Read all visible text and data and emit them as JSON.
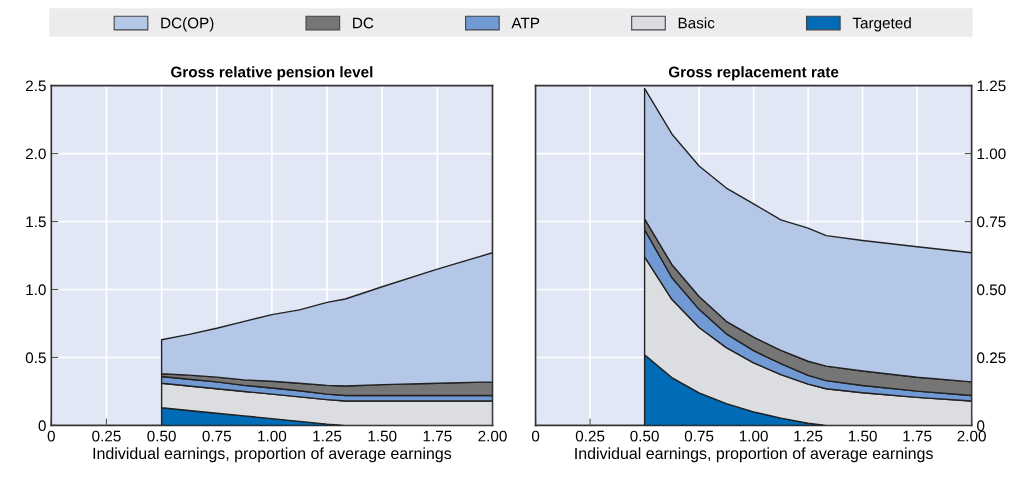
{
  "chart_data": [
    {
      "type": "area",
      "stacked": true,
      "title": "Gross relative pension level",
      "xlabel": "Individual earnings, proportion of average earnings",
      "legend": "top",
      "grid": true,
      "x": [
        0.5,
        0.625,
        0.75,
        0.875,
        1.0,
        1.125,
        1.25,
        1.333,
        1.5,
        1.75,
        2.0
      ],
      "xlim": [
        0,
        2
      ],
      "xticks": [
        0,
        {
          "value": 0.25,
          "label": "0.25"
        },
        {
          "value": 0.5,
          "label": "0.50"
        },
        {
          "value": 0.75,
          "label": "0.75"
        },
        {
          "value": 1,
          "label": "1.00"
        },
        {
          "value": 1.25,
          "label": "1.25"
        },
        {
          "value": 1.5,
          "label": "1.50"
        },
        {
          "value": 1.75,
          "label": "1.75"
        },
        {
          "value": 2,
          "label": "2.00"
        }
      ],
      "ylim": [
        0,
        2.5
      ],
      "yticks": [
        0,
        0.5,
        {
          "value": 1,
          "label": "1.0"
        },
        1.5,
        {
          "value": 2,
          "label": "2.0"
        },
        2.5
      ],
      "series": [
        {
          "name": "Targeted",
          "color": "#006bb6",
          "values": [
            0.13,
            0.11,
            0.09,
            0.07,
            0.05,
            0.03,
            0.01,
            0,
            0,
            0,
            0
          ]
        },
        {
          "name": "Basic",
          "color": "#dcdde0",
          "values": [
            0.18,
            0.18,
            0.18,
            0.18,
            0.18,
            0.18,
            0.18,
            0.18,
            0.18,
            0.18,
            0.18
          ]
        },
        {
          "name": "ATP",
          "color": "#7199d3",
          "values": [
            0.05,
            0.05,
            0.05,
            0.045,
            0.045,
            0.045,
            0.04,
            0.04,
            0.04,
            0.04,
            0.04
          ]
        },
        {
          "name": "DC",
          "color": "#767676",
          "values": [
            0.02,
            0.03,
            0.035,
            0.04,
            0.05,
            0.055,
            0.065,
            0.07,
            0.08,
            0.09,
            0.1
          ]
        },
        {
          "name": "DC(OP)",
          "color": "#b4c7e7",
          "values": [
            0.25,
            0.3,
            0.36,
            0.43,
            0.49,
            0.54,
            0.61,
            0.64,
            0.72,
            0.84,
            0.95
          ]
        }
      ]
    },
    {
      "type": "area",
      "stacked": true,
      "title": "Gross replacement rate",
      "xlabel": "Individual earnings, proportion of average earnings",
      "grid": true,
      "x": [
        0.5,
        0.625,
        0.75,
        0.875,
        1.0,
        1.125,
        1.25,
        1.333,
        1.5,
        1.75,
        2.0
      ],
      "xlim": [
        0,
        2
      ],
      "xticks": [
        0,
        {
          "value": 0.25,
          "label": "0.25"
        },
        {
          "value": 0.5,
          "label": "0.50"
        },
        {
          "value": 0.75,
          "label": "0.75"
        },
        {
          "value": 1,
          "label": "1.00"
        },
        {
          "value": 1.25,
          "label": "1.25"
        },
        {
          "value": 1.5,
          "label": "1.50"
        },
        {
          "value": 1.75,
          "label": "1.75"
        },
        {
          "value": 2,
          "label": "2.00"
        }
      ],
      "ylim": [
        0,
        1.25
      ],
      "yticks": [
        0,
        0.25,
        {
          "value": 0.5,
          "label": "0.50"
        },
        0.75,
        {
          "value": 1,
          "label": "1.00"
        },
        1.25
      ],
      "series": [
        {
          "name": "Targeted",
          "color": "#006bb6",
          "values": [
            0.26,
            0.176,
            0.12,
            0.08,
            0.05,
            0.027,
            0.008,
            0,
            0,
            0,
            0
          ]
        },
        {
          "name": "Basic",
          "color": "#dcdde0",
          "values": [
            0.36,
            0.288,
            0.24,
            0.206,
            0.18,
            0.16,
            0.144,
            0.135,
            0.12,
            0.103,
            0.09
          ]
        },
        {
          "name": "ATP",
          "color": "#7199d3",
          "values": [
            0.1,
            0.08,
            0.067,
            0.051,
            0.045,
            0.04,
            0.032,
            0.03,
            0.027,
            0.023,
            0.02
          ]
        },
        {
          "name": "DC",
          "color": "#767676",
          "values": [
            0.04,
            0.048,
            0.047,
            0.046,
            0.05,
            0.049,
            0.052,
            0.053,
            0.053,
            0.051,
            0.05
          ]
        },
        {
          "name": "DC(OP)",
          "color": "#b4c7e7",
          "values": [
            0.48,
            0.48,
            0.48,
            0.49,
            0.49,
            0.48,
            0.49,
            0.48,
            0.48,
            0.48,
            0.475
          ]
        }
      ]
    }
  ]
}
